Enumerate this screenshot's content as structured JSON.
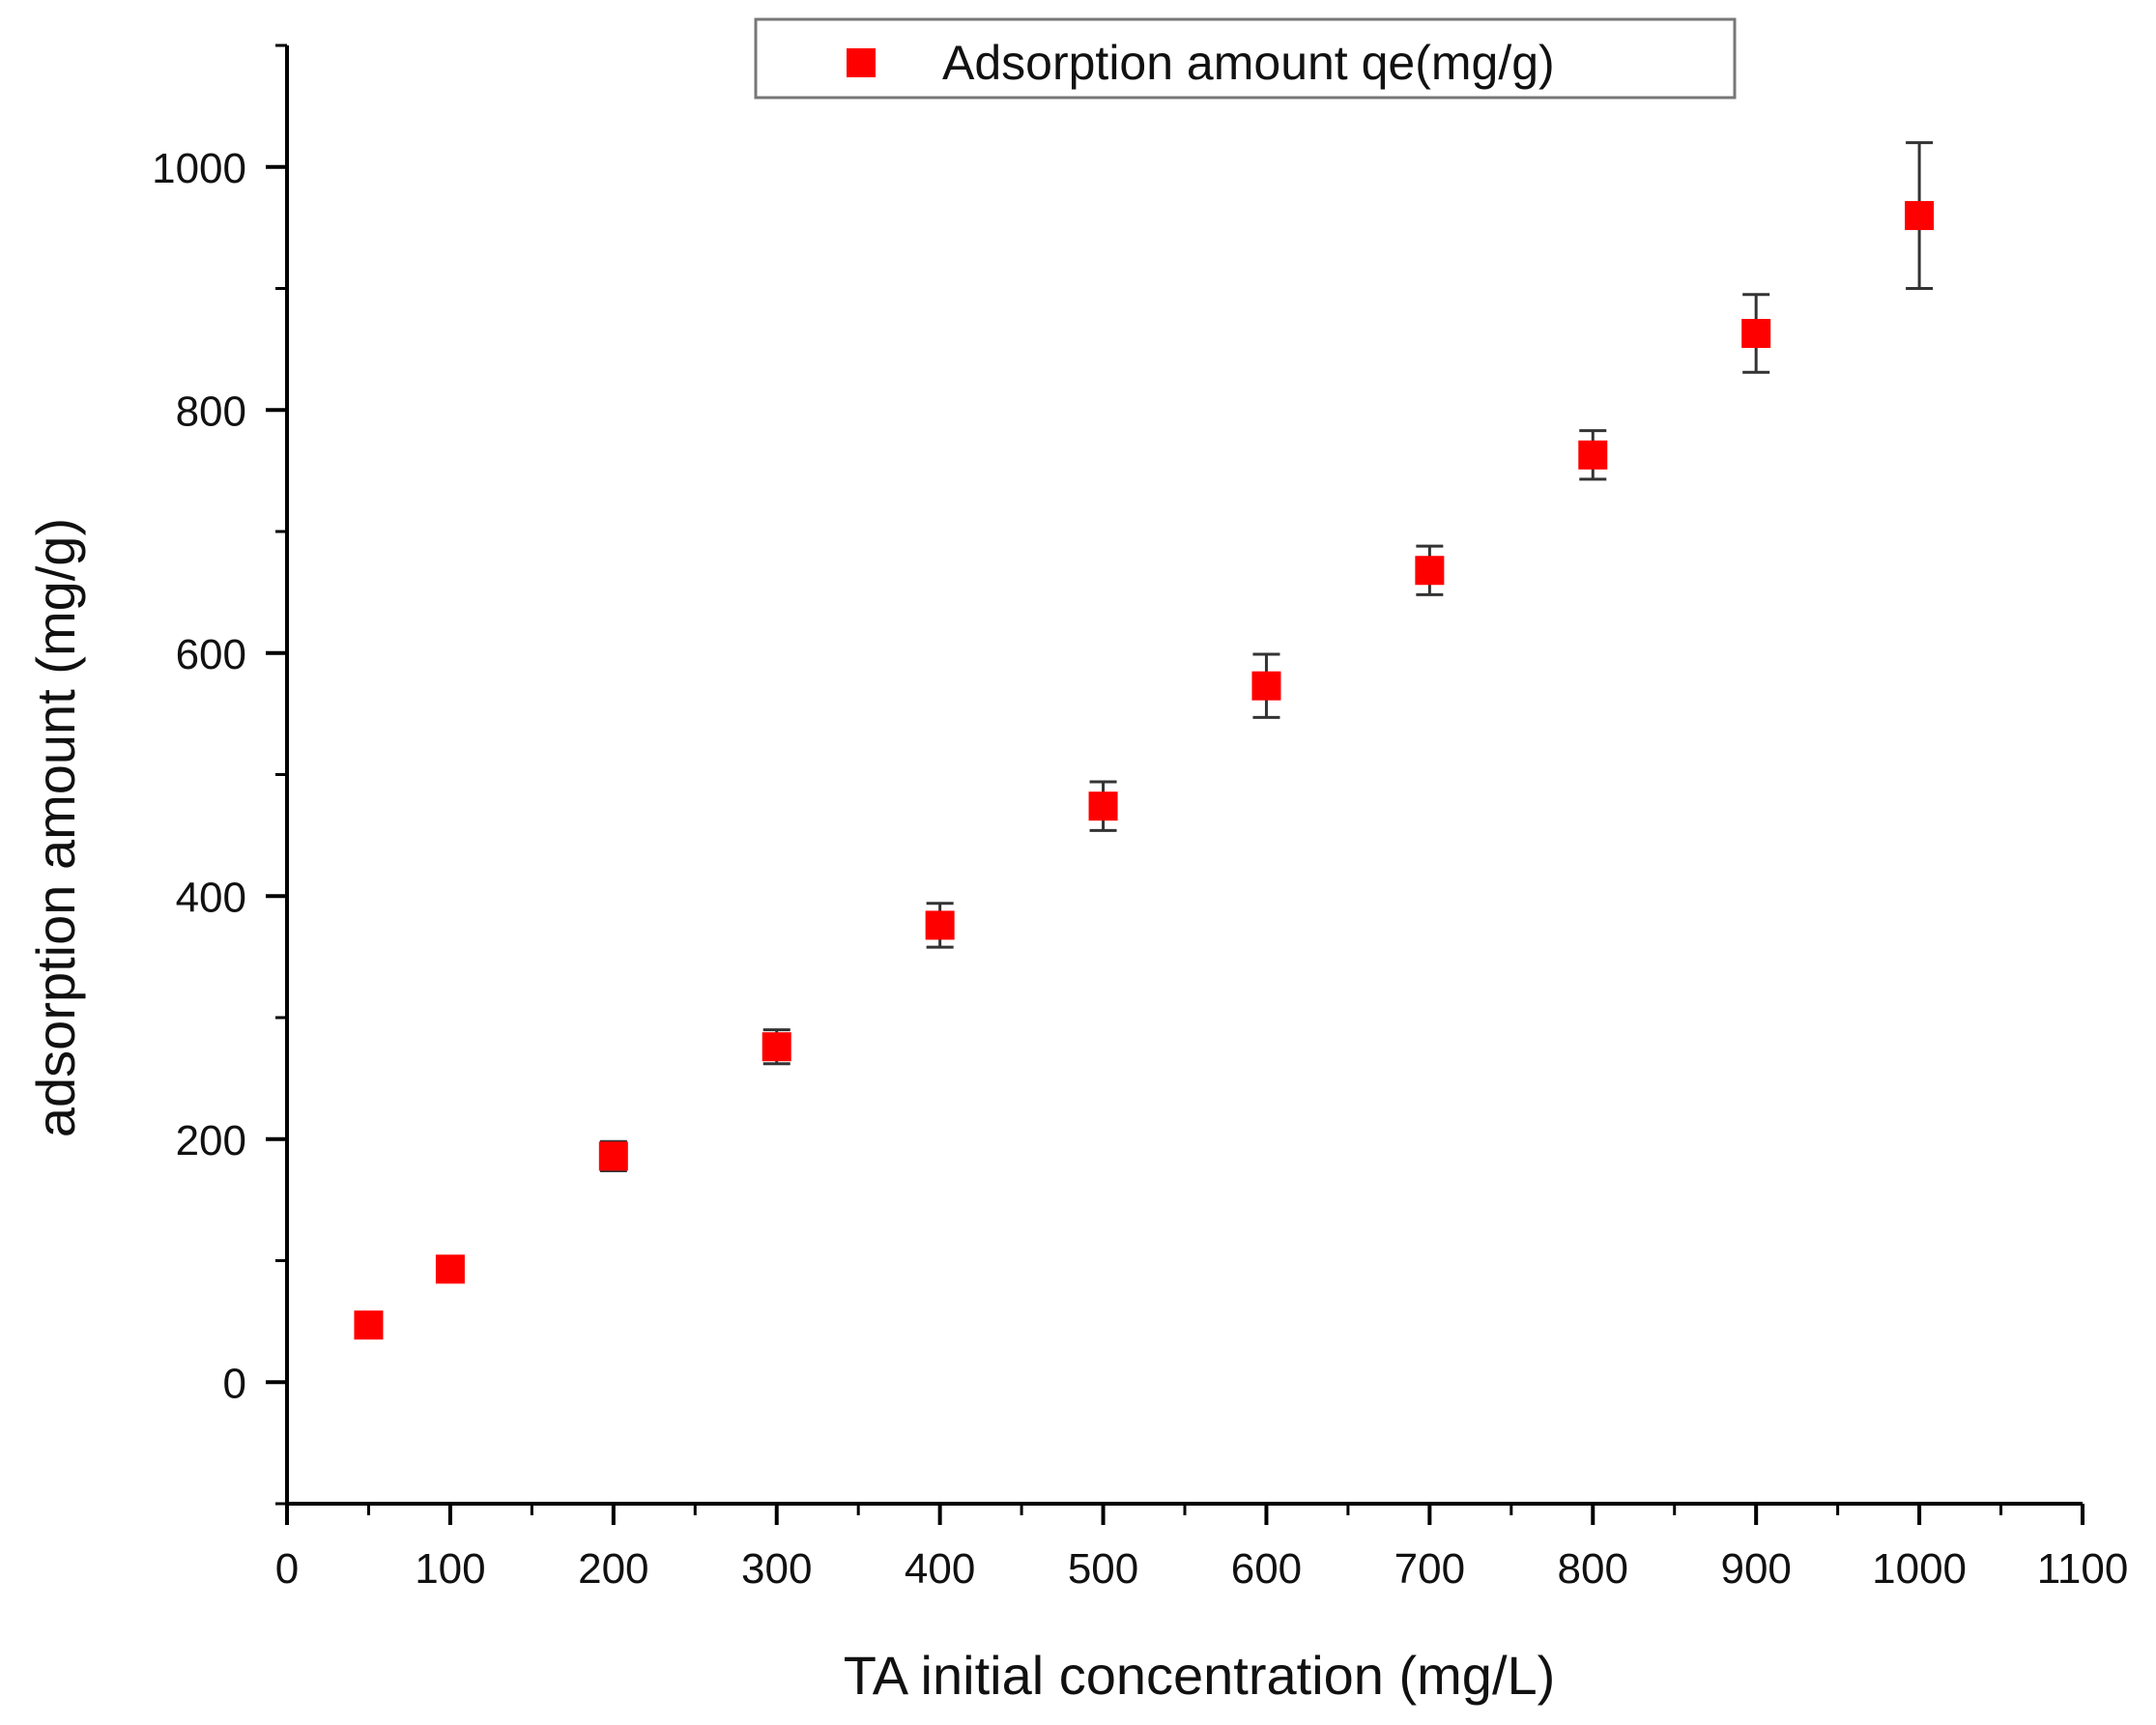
{
  "chart_data": {
    "type": "scatter",
    "title": "",
    "xlabel": "TA initial concentration (mg/L)",
    "ylabel": "adsorption amount (mg/g)",
    "xlim": [
      0,
      1100
    ],
    "ylim": [
      -100,
      1100
    ],
    "x_ticks": [
      0,
      100,
      200,
      300,
      400,
      500,
      600,
      700,
      800,
      900,
      1000,
      1100
    ],
    "y_ticks": [
      0,
      200,
      400,
      600,
      800,
      1000
    ],
    "x_tick_labels": [
      "0",
      "100",
      "200",
      "300",
      "400",
      "500",
      "600",
      "700",
      "800",
      "900",
      "1000",
      "1100"
    ],
    "y_tick_labels": [
      "0",
      "200",
      "400",
      "600",
      "800",
      "1000"
    ],
    "grid": false,
    "legend_position": "top-center",
    "series": [
      {
        "name": "Adsorption amount qe(mg/g)",
        "color": "#ff0000",
        "marker": "square",
        "x": [
          50,
          100,
          200,
          300,
          400,
          500,
          600,
          700,
          800,
          900,
          1000
        ],
        "y": [
          47,
          93,
          186,
          276,
          376,
          474,
          573,
          668,
          763,
          863,
          960
        ],
        "error": [
          8,
          10,
          12,
          14,
          18,
          20,
          26,
          20,
          20,
          32,
          60
        ]
      }
    ]
  }
}
